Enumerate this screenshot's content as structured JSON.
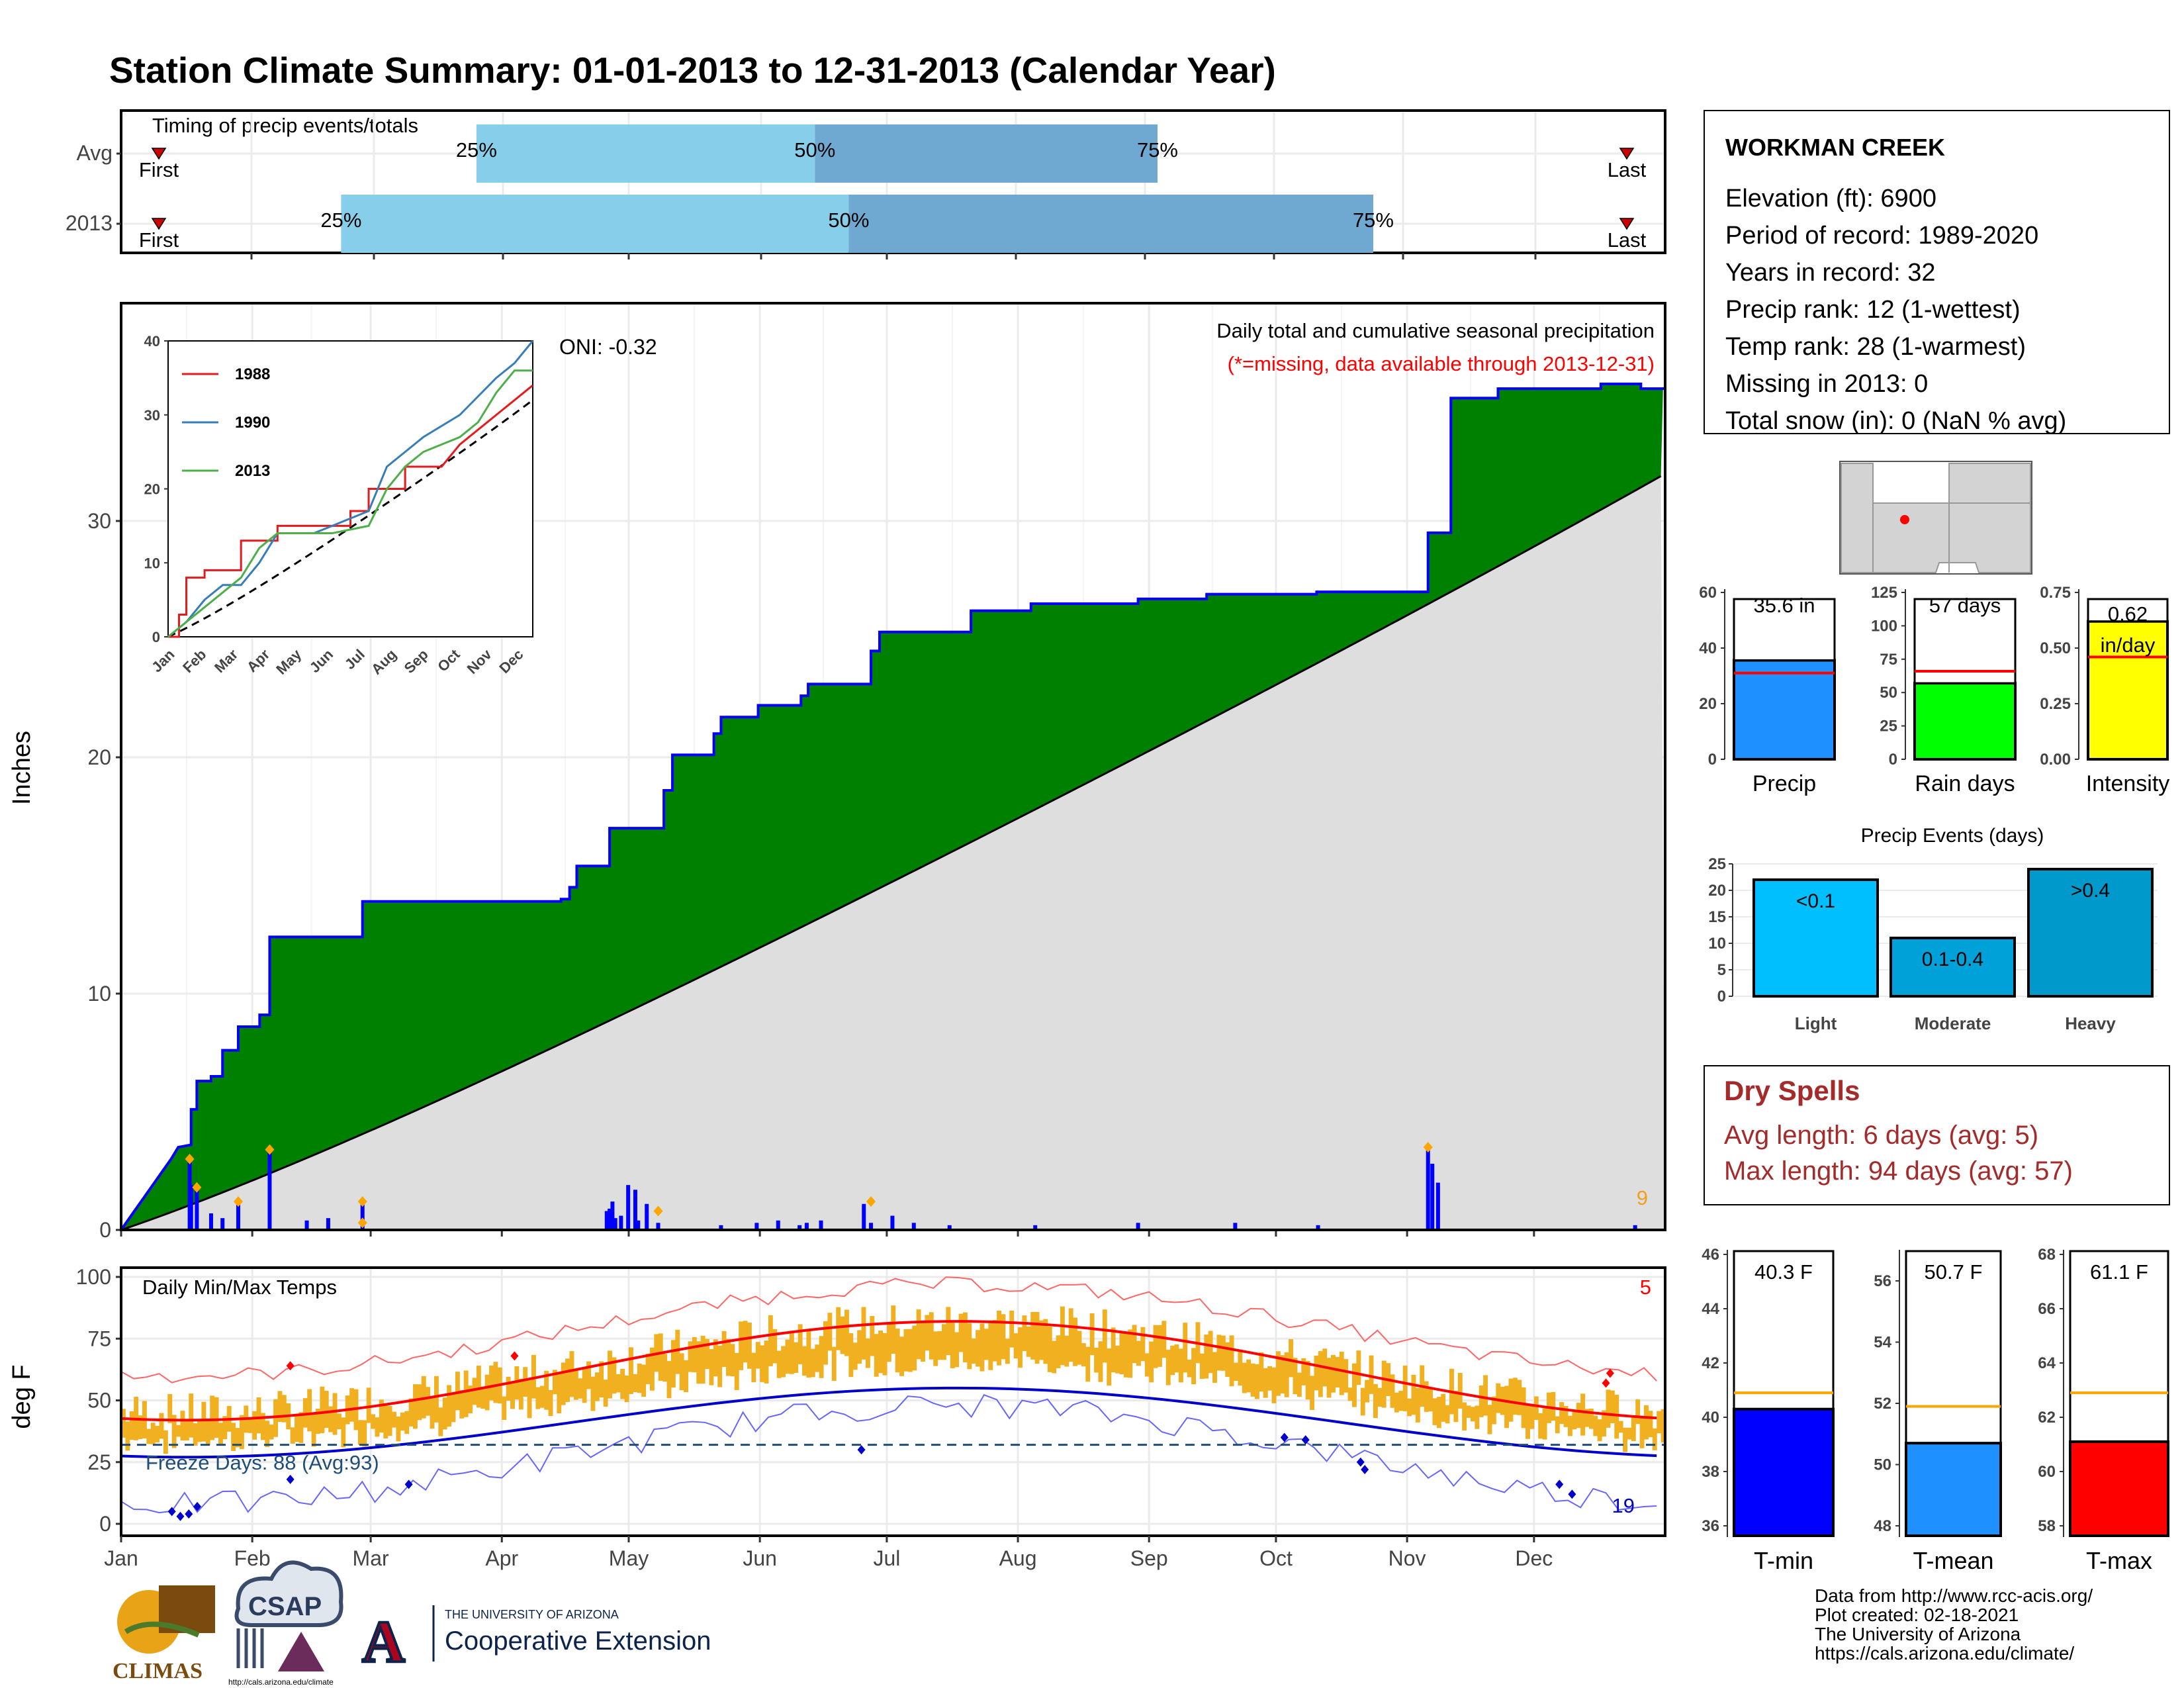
{
  "title": "Station Climate Summary: 01-01-2013 to 12-31-2013 (Calendar Year)",
  "timing": {
    "label": "Timing of precip events/totals",
    "rows": [
      {
        "name": "Avg",
        "first": "First",
        "last": "Last",
        "p25": "25%",
        "p50": "50%",
        "p75": "75%",
        "day25": 84,
        "day50": 164,
        "day75": 245
      },
      {
        "name": "2013",
        "first": "First",
        "last": "Last",
        "p25": "25%",
        "p50": "50%",
        "p75": "75%",
        "day25": 52,
        "day50": 172,
        "day75": 296
      }
    ],
    "first_day": 5,
    "last_day": 353
  },
  "station": {
    "name": "WORKMAN CREEK",
    "lines": [
      "Elevation (ft): 6900",
      "Period of record: 1989-2020",
      "Years in record: 32",
      "Precip rank: 12 (1-wettest)",
      "Temp rank: 28 (1-warmest)",
      "Missing in 2013: 0",
      "Total snow (in): 0 (NaN % avg)"
    ]
  },
  "precip_panel": {
    "ylabel": "Inches",
    "oni": "ONI: -0.32",
    "caption": "Daily total and cumulative seasonal precipitation",
    "caption_missing": "(*=missing, data available through 2013-12-31)",
    "count_label": "9",
    "yticks": [
      "0",
      "10",
      "20",
      "30"
    ]
  },
  "inset": {
    "yticks": [
      "0",
      "10",
      "20",
      "30",
      "40"
    ],
    "months": [
      "Jan",
      "Feb",
      "Mar",
      "Apr",
      "May",
      "Jun",
      "Jul",
      "Aug",
      "Sep",
      "Oct",
      "Nov",
      "Dec"
    ],
    "legend": [
      "1988",
      "1990",
      "2013"
    ]
  },
  "temp_panel": {
    "ylabel": "deg F",
    "label": "Daily Min/Max Temps",
    "freeze": "Freeze Days: 88 (Avg:93)",
    "count_hot": "5",
    "count_cold": "19",
    "yticks": [
      "0",
      "25",
      "50",
      "75",
      "100"
    ]
  },
  "months": [
    "Jan",
    "Feb",
    "Mar",
    "Apr",
    "May",
    "Jun",
    "Jul",
    "Aug",
    "Sep",
    "Oct",
    "Nov",
    "Dec"
  ],
  "summary_bars": [
    {
      "label": "Precip",
      "value_label": "35.6 in",
      "ticks": [
        "0",
        "20",
        "40",
        "60"
      ]
    },
    {
      "label": "Rain days",
      "value_label": "57 days",
      "ticks": [
        "0",
        "25",
        "50",
        "75",
        "100",
        "125"
      ]
    },
    {
      "label": "Intensity",
      "value_label": "0.62 in/day",
      "value_line1": "0.62",
      "value_line2": "in/day",
      "ticks": [
        "0.00",
        "0.25",
        "0.50",
        "0.75"
      ]
    }
  ],
  "events": {
    "title": "Precip Events (days)",
    "ticks": [
      "0",
      "5",
      "10",
      "15",
      "20",
      "25"
    ],
    "bars": [
      {
        "category": "Light",
        "label": "<0.1"
      },
      {
        "category": "Moderate",
        "label": "0.1-0.4"
      },
      {
        "category": "Heavy",
        "label": ">0.4"
      }
    ]
  },
  "dry_spells": {
    "title": "Dry Spells",
    "avg": "Avg length: 6 days (avg: 5)",
    "max": "Max length: 94 days (avg: 57)"
  },
  "temp_bars": [
    {
      "label": "T-min",
      "value_label": "40.3 F",
      "ticks": [
        "36",
        "38",
        "40",
        "42",
        "44",
        "46"
      ]
    },
    {
      "label": "T-mean",
      "value_label": "50.7 F",
      "ticks": [
        "48",
        "50",
        "52",
        "54",
        "56"
      ]
    },
    {
      "label": "T-max",
      "value_label": "61.1 F",
      "ticks": [
        "58",
        "60",
        "62",
        "64",
        "66",
        "68"
      ]
    }
  ],
  "credits": [
    "Data from http://www.rcc-acis.org/",
    "Plot created: 02-18-2021",
    "The University of Arizona",
    "https://cals.arizona.edu/climate/"
  ],
  "logos": {
    "climas": "CLIMAS",
    "csap": "CSAP",
    "csap_url": "http://cals.arizona.edu/climate",
    "ua_line1": "THE UNIVERSITY OF ARIZONA",
    "ua_line2": "Cooperative Extension",
    "ua_letter": "A"
  },
  "colors": {
    "title": "#000080",
    "light_blue": "#87ceeb",
    "mid_blue": "#6fa8d0",
    "green": "#008000",
    "brown": "#7b4a0e",
    "grey_fill": "#dedede",
    "bar_blue": "#0000ff",
    "orange": "#f0b020",
    "red": "#ff0000",
    "dark_red": "#a52a2a"
  },
  "chart_data": {
    "type": "bar",
    "series": [
      {
        "name": "Precip",
        "unit": "in",
        "value": 35.6,
        "avg": 31.0,
        "ylim": [
          0,
          60
        ]
      },
      {
        "name": "Rain days",
        "unit": "days",
        "value": 57,
        "avg": 66,
        "ylim": [
          0,
          125
        ]
      },
      {
        "name": "Intensity",
        "unit": "in/day",
        "value": 0.62,
        "avg": 0.46,
        "ylim": [
          0,
          0.75
        ]
      }
    ],
    "events": {
      "categories": [
        "Light",
        "Moderate",
        "Heavy"
      ],
      "values": [
        22,
        11,
        24
      ],
      "ylim": [
        0,
        25
      ]
    },
    "temps": [
      {
        "name": "T-min",
        "value": 40.3,
        "avg": 40.9,
        "ylim": [
          36,
          46
        ]
      },
      {
        "name": "T-mean",
        "value": 50.7,
        "avg": 51.9,
        "ylim": [
          48,
          56
        ]
      },
      {
        "name": "T-max",
        "value": 61.1,
        "avg": 62.9,
        "ylim": [
          58,
          68
        ]
      }
    ],
    "cumulative_2013": [
      [
        0,
        0
      ],
      [
        7,
        0.6
      ],
      [
        14,
        1.2
      ],
      [
        21,
        1.8
      ],
      [
        28,
        2.4
      ],
      [
        35,
        3.0
      ],
      [
        40,
        3.5
      ],
      [
        49,
        3.6
      ],
      [
        49,
        5.1
      ],
      [
        53,
        5.1
      ],
      [
        53,
        6.3
      ],
      [
        63,
        6.3
      ],
      [
        63,
        6.5
      ],
      [
        71,
        6.5
      ],
      [
        71,
        7.6
      ],
      [
        82,
        7.6
      ],
      [
        82,
        8.6
      ],
      [
        97,
        8.6
      ],
      [
        97,
        9.1
      ],
      [
        104,
        9.1
      ],
      [
        104,
        12.4
      ],
      [
        169,
        12.4
      ],
      [
        169,
        13.9
      ],
      [
        308,
        13.9
      ],
      [
        308,
        14.0
      ],
      [
        314,
        14.0
      ],
      [
        314,
        14.5
      ],
      [
        319,
        14.5
      ],
      [
        319,
        15.4
      ],
      [
        342,
        15.4
      ],
      [
        342,
        17.0
      ],
      [
        380,
        17.0
      ],
      [
        380,
        18.6
      ],
      [
        386,
        18.6
      ],
      [
        386,
        20.1
      ],
      [
        415,
        20.1
      ],
      [
        415,
        21.0
      ],
      [
        420,
        21.0
      ],
      [
        420,
        21.7
      ],
      [
        446,
        21.7
      ],
      [
        446,
        22.2
      ],
      [
        476,
        22.2
      ],
      [
        476,
        22.6
      ],
      [
        481,
        22.6
      ],
      [
        481,
        23.1
      ],
      [
        525,
        23.1
      ],
      [
        525,
        24.5
      ],
      [
        531,
        24.5
      ],
      [
        531,
        25.3
      ],
      [
        595,
        25.3
      ],
      [
        595,
        26.2
      ],
      [
        637,
        26.2
      ],
      [
        637,
        26.5
      ],
      [
        712,
        26.5
      ],
      [
        712,
        26.7
      ],
      [
        760,
        26.7
      ],
      [
        760,
        26.9
      ],
      [
        837,
        26.9
      ],
      [
        837,
        27.0
      ],
      [
        915,
        27.0
      ],
      [
        915,
        29.5
      ],
      [
        931,
        29.5
      ],
      [
        931,
        35.2
      ],
      [
        964,
        35.2
      ],
      [
        964,
        35.6
      ],
      [
        1036,
        35.6
      ],
      [
        1036,
        35.8
      ],
      [
        1064,
        35.8
      ],
      [
        1064,
        35.6
      ],
      [
        1081,
        35.6
      ],
      [
        1081,
        35.6
      ]
    ],
    "ylim": [
      0,
      38
    ],
    "temp_ylim": [
      -5,
      103
    ],
    "avg_tmax_range": [
      42,
      82
    ],
    "avg_tmin_range": [
      27,
      55
    ],
    "freeze_line": 32
  }
}
